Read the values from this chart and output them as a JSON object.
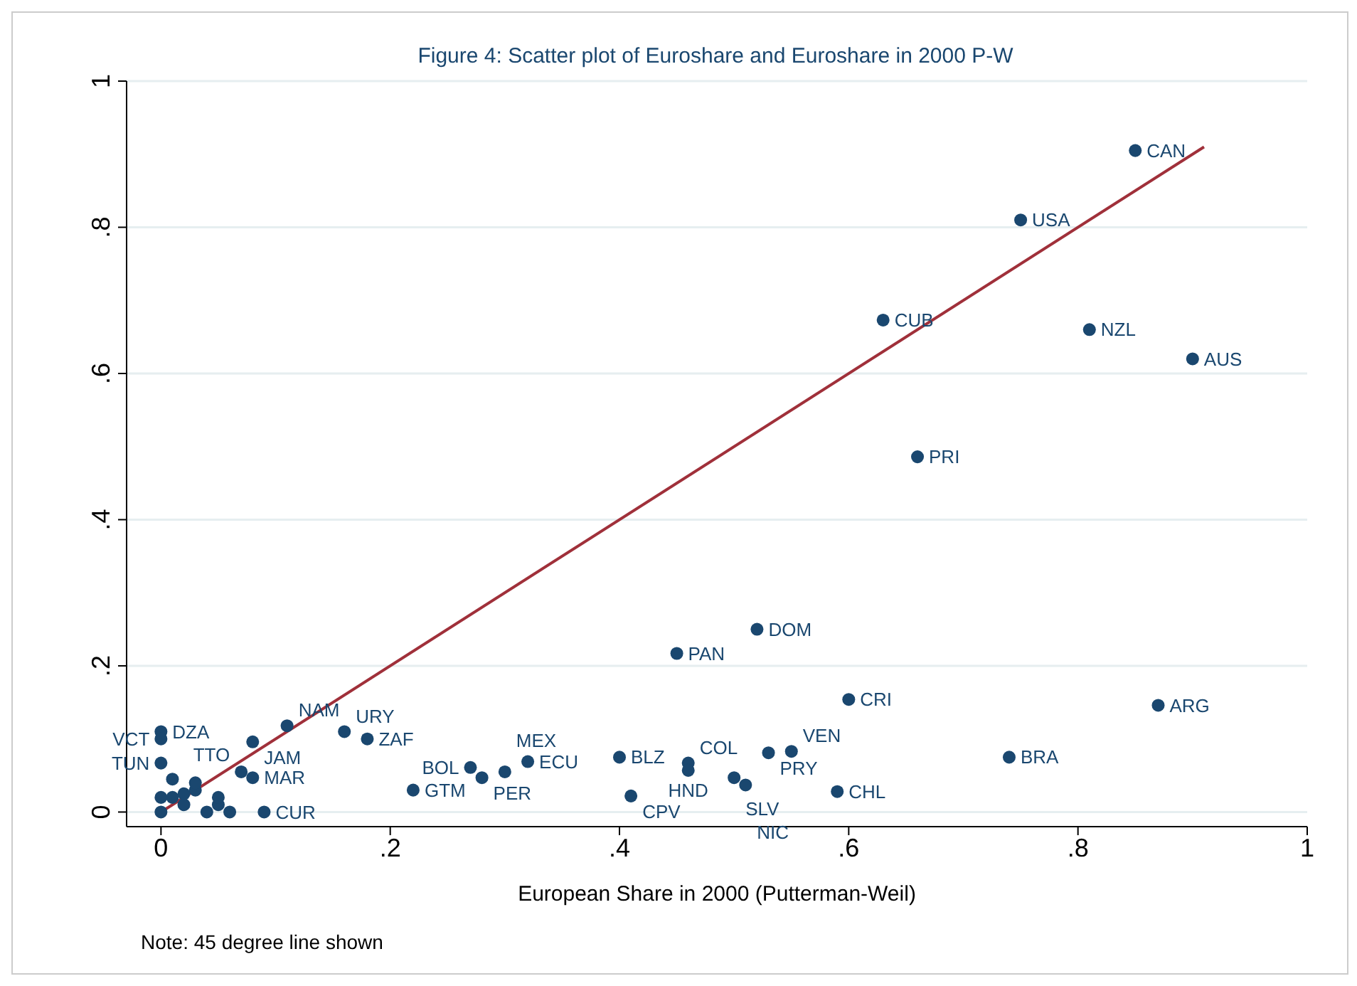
{
  "chart_data": {
    "type": "scatter",
    "title": "Figure 4: Scatter plot of Euroshare and Euroshare in 2000 P-W",
    "xlabel": "European Share in 2000 (Putterman-Weil)",
    "xlim": [
      -0.03,
      1.0
    ],
    "ylim": [
      -0.02,
      1.0
    ],
    "xticks": [
      {
        "value": 0,
        "label": "0"
      },
      {
        "value": 0.2,
        "label": ".2"
      },
      {
        "value": 0.4,
        "label": ".4"
      },
      {
        "value": 0.6,
        "label": ".6"
      },
      {
        "value": 0.8,
        "label": ".8"
      },
      {
        "value": 1,
        "label": "1"
      }
    ],
    "yticks": [
      {
        "value": 0,
        "label": "0"
      },
      {
        "value": 0.2,
        "label": ".2"
      },
      {
        "value": 0.4,
        "label": ".4"
      },
      {
        "value": 0.6,
        "label": ".6"
      },
      {
        "value": 0.8,
        "label": ".8"
      },
      {
        "value": 1,
        "label": "1"
      }
    ],
    "grid": "y",
    "marker": "circle",
    "series": [
      {
        "color": "#1a476f",
        "x": [
          0.85,
          0.75,
          0.63,
          0.81,
          0.9,
          0.66,
          0.52,
          0.45,
          0.6,
          0.87,
          0.74,
          0.4,
          0.46,
          0.46,
          0.53,
          0.55,
          0.5,
          0.51,
          0.59,
          0.41,
          0.32,
          0.27,
          0.28,
          0.3,
          0.22,
          0.18,
          0.16,
          0.11,
          0.08,
          0.07,
          0.08,
          0,
          0,
          0,
          0.09,
          0,
          0.01,
          0.02,
          0.03,
          0.04,
          0.05,
          0.06,
          0.01,
          0.03,
          0.02,
          0,
          0.05
        ],
        "values": [
          0.905,
          0.81,
          0.673,
          0.66,
          0.62,
          0.486,
          0.25,
          0.217,
          0.154,
          0.146,
          0.075,
          0.075,
          0.067,
          0.057,
          0.081,
          0.083,
          0.047,
          0.037,
          0.028,
          0.022,
          0.069,
          0.061,
          0.047,
          0.055,
          0.03,
          0.1,
          0.11,
          0.118,
          0.096,
          0.055,
          0.047,
          0.11,
          0.1,
          0.067,
          0,
          0,
          0.02,
          0.01,
          0.03,
          0,
          0.01,
          0,
          0.045,
          0.04,
          0.025,
          0.02,
          0.02
        ]
      },
      {
        "type": "line",
        "color": "#a0303a",
        "x": [
          0,
          0.91
        ],
        "values": [
          0,
          0.91
        ],
        "marker": "none",
        "line_style": "solid"
      }
    ],
    "annotations": [
      {
        "text": "CAN",
        "x": 0.85,
        "y": 0.905
      },
      {
        "text": "USA",
        "x": 0.75,
        "y": 0.81
      },
      {
        "text": "CUB",
        "x": 0.63,
        "y": 0.673
      },
      {
        "text": "NZL",
        "x": 0.81,
        "y": 0.66
      },
      {
        "text": "AUS",
        "x": 0.9,
        "y": 0.62
      },
      {
        "text": "PRI",
        "x": 0.66,
        "y": 0.486
      },
      {
        "text": "DOM",
        "x": 0.52,
        "y": 0.25
      },
      {
        "text": "PAN",
        "x": 0.45,
        "y": 0.217
      },
      {
        "text": "CRI",
        "x": 0.6,
        "y": 0.154
      },
      {
        "text": "ARG",
        "x": 0.87,
        "y": 0.146
      },
      {
        "text": "BRA",
        "x": 0.74,
        "y": 0.075
      },
      {
        "text": "BLZ",
        "x": 0.4,
        "y": 0.075
      },
      {
        "text": "COL",
        "x": 0.46,
        "y": 0.067
      },
      {
        "text": "HND",
        "x": 0.46,
        "y": 0.057
      },
      {
        "text": "PRY",
        "x": 0.53,
        "y": 0.081
      },
      {
        "text": "VEN",
        "x": 0.55,
        "y": 0.083
      },
      {
        "text": "SLV",
        "x": 0.5,
        "y": 0.047
      },
      {
        "text": "NIC",
        "x": 0.51,
        "y": 0.037
      },
      {
        "text": "CHL",
        "x": 0.59,
        "y": 0.028
      },
      {
        "text": "CPV",
        "x": 0.41,
        "y": 0.022
      },
      {
        "text": "ECU",
        "x": 0.32,
        "y": 0.069
      },
      {
        "text": "BOL",
        "x": 0.27,
        "y": 0.061
      },
      {
        "text": "PER",
        "x": 0.28,
        "y": 0.047
      },
      {
        "text": "MEX",
        "x": 0.3,
        "y": 0.055
      },
      {
        "text": "GTM",
        "x": 0.22,
        "y": 0.03
      },
      {
        "text": "ZAF",
        "x": 0.18,
        "y": 0.1
      },
      {
        "text": "URY",
        "x": 0.16,
        "y": 0.11
      },
      {
        "text": "NAM",
        "x": 0.11,
        "y": 0.118
      },
      {
        "text": "JAM",
        "x": 0.08,
        "y": 0.096
      },
      {
        "text": "TTO",
        "x": 0.07,
        "y": 0.055
      },
      {
        "text": "MAR",
        "x": 0.08,
        "y": 0.047
      },
      {
        "text": "DZA",
        "x": 0,
        "y": 0.11
      },
      {
        "text": "VCT",
        "x": 0,
        "y": 0.1
      },
      {
        "text": "TUN",
        "x": 0,
        "y": 0.067
      },
      {
        "text": "CUR",
        "x": 0.09,
        "y": 0
      },
      "Note: 45 degree line shown"
    ]
  }
}
